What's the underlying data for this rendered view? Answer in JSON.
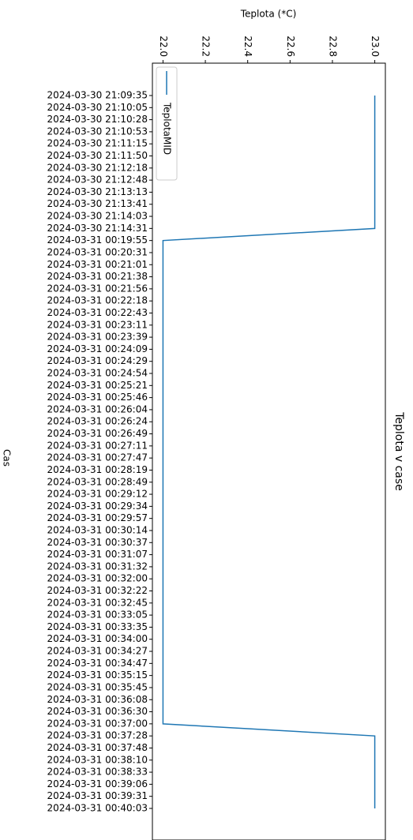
{
  "chart_data": {
    "type": "line",
    "title": "Teplota v case",
    "xlabel": "Cas",
    "ylabel": "Teplota (*C)",
    "categories": [
      "2024-03-30 21:09:35",
      "2024-03-30 21:10:05",
      "2024-03-30 21:10:28",
      "2024-03-30 21:10:53",
      "2024-03-30 21:11:15",
      "2024-03-30 21:11:50",
      "2024-03-30 21:12:18",
      "2024-03-30 21:12:48",
      "2024-03-30 21:13:13",
      "2024-03-30 21:13:41",
      "2024-03-30 21:14:03",
      "2024-03-30 21:14:31",
      "2024-03-31 00:19:55",
      "2024-03-31 00:20:31",
      "2024-03-31 00:21:01",
      "2024-03-31 00:21:38",
      "2024-03-31 00:21:56",
      "2024-03-31 00:22:18",
      "2024-03-31 00:22:43",
      "2024-03-31 00:23:11",
      "2024-03-31 00:23:39",
      "2024-03-31 00:24:09",
      "2024-03-31 00:24:29",
      "2024-03-31 00:24:54",
      "2024-03-31 00:25:21",
      "2024-03-31 00:25:46",
      "2024-03-31 00:26:04",
      "2024-03-31 00:26:24",
      "2024-03-31 00:26:49",
      "2024-03-31 00:27:11",
      "2024-03-31 00:27:47",
      "2024-03-31 00:28:19",
      "2024-03-31 00:28:49",
      "2024-03-31 00:29:12",
      "2024-03-31 00:29:34",
      "2024-03-31 00:29:57",
      "2024-03-31 00:30:14",
      "2024-03-31 00:30:37",
      "2024-03-31 00:31:07",
      "2024-03-31 00:31:32",
      "2024-03-31 00:32:00",
      "2024-03-31 00:32:22",
      "2024-03-31 00:32:45",
      "2024-03-31 00:33:05",
      "2024-03-31 00:33:35",
      "2024-03-31 00:34:00",
      "2024-03-31 00:34:27",
      "2024-03-31 00:34:47",
      "2024-03-31 00:35:15",
      "2024-03-31 00:35:45",
      "2024-03-31 00:36:08",
      "2024-03-31 00:36:30",
      "2024-03-31 00:37:00",
      "2024-03-31 00:37:28",
      "2024-03-31 00:37:48",
      "2024-03-31 00:38:10",
      "2024-03-31 00:38:33",
      "2024-03-31 00:39:06",
      "2024-03-31 00:39:31",
      "2024-03-31 00:40:03"
    ],
    "series": [
      {
        "name": "TeplotaMID",
        "color": "#1f77b4",
        "values": [
          23,
          23,
          23,
          23,
          23,
          23,
          23,
          23,
          23,
          23,
          23,
          23,
          22,
          22,
          22,
          22,
          22,
          22,
          22,
          22,
          22,
          22,
          22,
          22,
          22,
          22,
          22,
          22,
          22,
          22,
          22,
          22,
          22,
          22,
          22,
          22,
          22,
          22,
          22,
          22,
          22,
          22,
          22,
          22,
          22,
          22,
          22,
          22,
          22,
          22,
          22,
          22,
          22,
          23,
          23,
          23,
          23,
          23,
          23,
          23
        ]
      }
    ],
    "ylim": [
      21.95,
      23.05
    ],
    "yticks": [
      {
        "value": 22.0,
        "label": "22.0"
      },
      {
        "value": 22.2,
        "label": "22.2"
      },
      {
        "value": 22.4,
        "label": "22.4"
      },
      {
        "value": 22.6,
        "label": "22.6"
      },
      {
        "value": 22.8,
        "label": "22.8"
      },
      {
        "value": 23.0,
        "label": "23.0"
      }
    ],
    "legend": "upper left",
    "grid": false
  }
}
